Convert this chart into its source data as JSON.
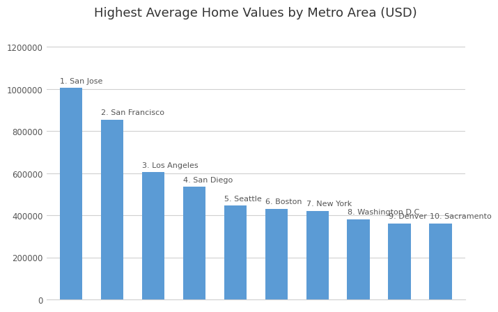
{
  "title": "Highest Average Home Values by Metro Area (USD)",
  "categories": [
    "1. San Jose",
    "2. San Francisco",
    "3. Los Angeles",
    "4. San Diego",
    "5. Seattle",
    "6. Boston",
    "7. New York",
    "8. Washington D.C",
    "9. Denver",
    "10. Sacramento"
  ],
  "values": [
    1005000,
    855000,
    605000,
    535000,
    445000,
    430000,
    420000,
    382000,
    362000,
    362000
  ],
  "bar_color": "#5b9bd5",
  "background_color": "#ffffff",
  "ylim": [
    0,
    1300000
  ],
  "yticks": [
    0,
    200000,
    400000,
    600000,
    800000,
    1000000,
    1200000
  ],
  "grid_color": "#d0d0d0",
  "title_fontsize": 13,
  "label_fontsize": 8,
  "tick_fontsize": 8.5
}
